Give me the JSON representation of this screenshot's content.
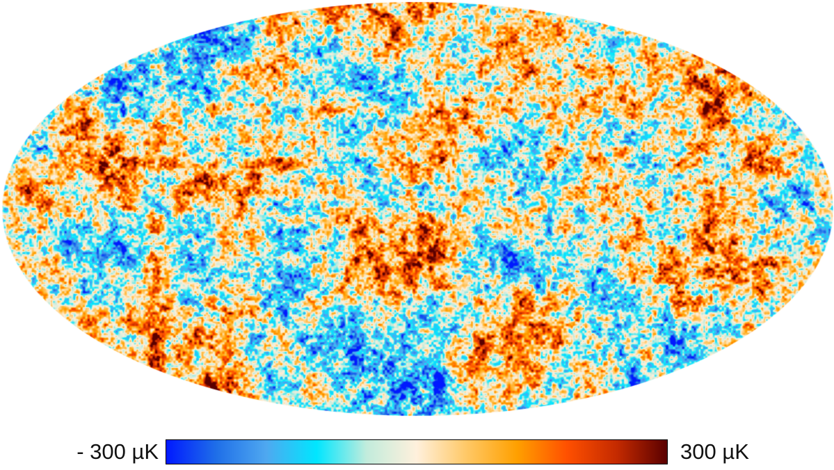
{
  "figure": {
    "projection": "mollweide",
    "colorbar": {
      "min_label": "- 300 µK",
      "max_label": "300 µK",
      "min_value": -300,
      "max_value": 300,
      "unit": "µK",
      "colors": [
        "#0019ff",
        "#1f6fe8",
        "#4fa8f0",
        "#00e6ff",
        "#c2ecdc",
        "#fff0dc",
        "#ffc866",
        "#ffa000",
        "#ff5000",
        "#c42a00",
        "#5a0000"
      ]
    }
  }
}
